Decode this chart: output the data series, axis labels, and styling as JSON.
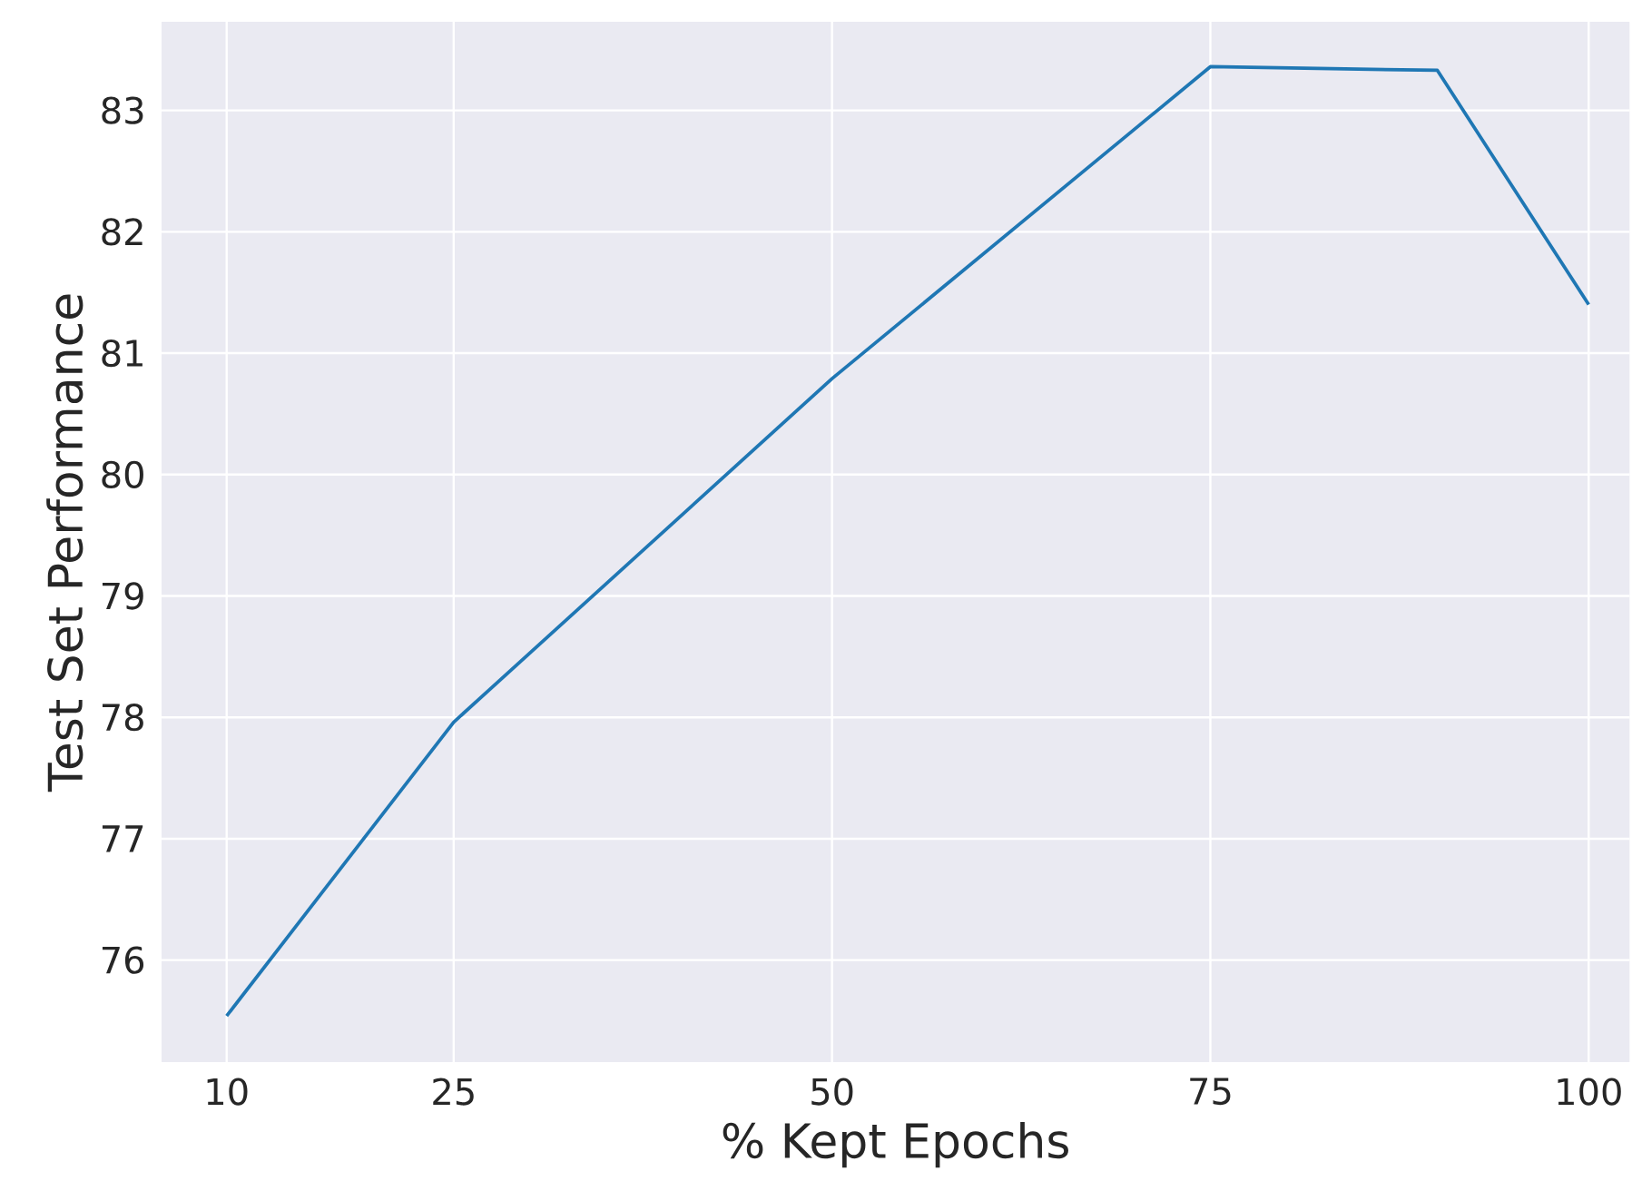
{
  "chart_data": {
    "type": "line",
    "xlabel": "% Kept Epochs",
    "ylabel": "Test Set Performance",
    "x": [
      10,
      25,
      50,
      75,
      90,
      100
    ],
    "series": [
      {
        "color": "#1f77b4",
        "values": [
          75.54,
          77.96,
          80.79,
          83.36,
          83.33,
          81.4
        ]
      }
    ],
    "xlim": [
      5.7,
      102.7
    ],
    "ylim": [
      75.16,
      83.73
    ],
    "xticks": [
      10,
      25,
      50,
      75,
      100
    ],
    "yticks": [
      76,
      77,
      78,
      79,
      80,
      81,
      82,
      83
    ],
    "grid": true
  }
}
